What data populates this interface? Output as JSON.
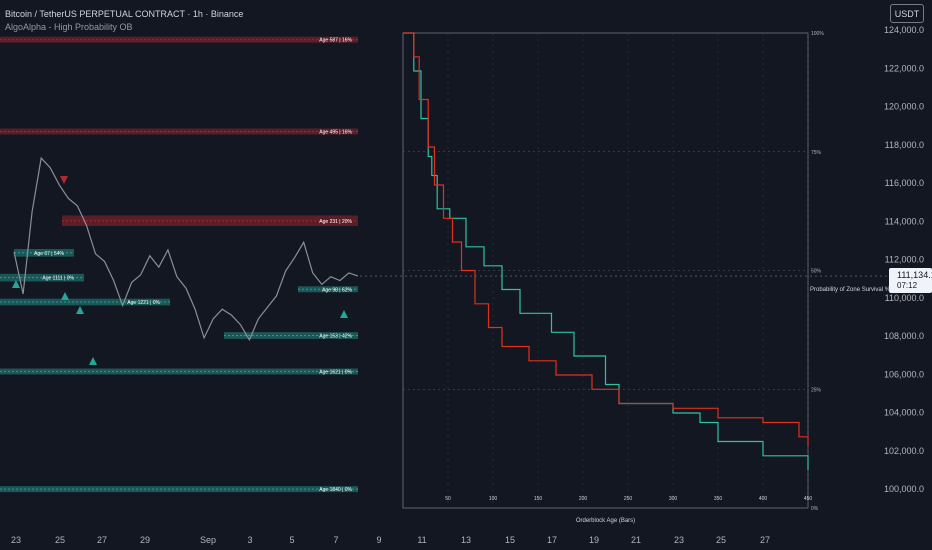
{
  "header": {
    "symbol_title": "Bitcoin / TetherUS PERPETUAL CONTRACT · 1h · Binance",
    "indicator_name": "AlgoAlpha - High Probability OB"
  },
  "currency_button": "USDT",
  "last_price": {
    "price": "111,134.1",
    "countdown": "07:12"
  },
  "price_axis": {
    "ticks": [
      "124,000.0",
      "122,000.0",
      "120,000.0",
      "118,000.0",
      "116,000.0",
      "114,000.0",
      "112,000.0",
      "110,000.0",
      "108,000.0",
      "106,000.0",
      "104,000.0",
      "102,000.0",
      "100,000.0"
    ],
    "ticks_values": [
      124000,
      122000,
      120000,
      118000,
      116000,
      114000,
      112000,
      110000,
      108000,
      106000,
      104000,
      102000,
      100000
    ]
  },
  "time_axis": {
    "labels": [
      "23",
      "25",
      "27",
      "29",
      "Sep",
      "3",
      "5",
      "7",
      "9",
      "11",
      "13",
      "15",
      "17",
      "19",
      "21",
      "23",
      "25",
      "27"
    ]
  },
  "order_blocks": [
    {
      "label": "Age 587 | 16%",
      "color": "bear"
    },
    {
      "label": "Age 495 | 16%",
      "color": "bear"
    },
    {
      "label": "Age 231 | 20%",
      "color": "bear"
    },
    {
      "label": "Age 67 | 54%",
      "color": "bull"
    },
    {
      "label": "Age 1111 | 0%",
      "color": "bull"
    },
    {
      "label": "Age 1221 | 0%",
      "color": "bull"
    },
    {
      "label": "Age 98 | 62%",
      "color": "bull"
    },
    {
      "label": "Age 153 | 42%",
      "color": "bull"
    },
    {
      "label": "Age 1621 | 0%",
      "color": "bull"
    },
    {
      "label": "Age 1840 | 0%",
      "color": "bull"
    }
  ],
  "survival_panel": {
    "xlabel": "Orderblock Age (Bars)",
    "ylabel": "Probability of Zone Survival %",
    "y_ticks": [
      "100%",
      "75%",
      "50%",
      "25%",
      "0%"
    ],
    "x_ticks": [
      "50",
      "100",
      "150",
      "200",
      "250",
      "300",
      "350",
      "400",
      "450"
    ]
  },
  "colors": {
    "background": "#131722",
    "bull": "#26a69a",
    "bear": "#b22833",
    "teal_curve": "#2fc1a4",
    "red_curve": "#e0301e",
    "candle": "#8a8e99"
  },
  "chart_data": [
    {
      "type": "line",
      "title": "Bitcoin / TetherUS PERPETUAL CONTRACT · 1h · Binance",
      "ylim": [
        99500,
        124500
      ],
      "y_ticks": [
        124000,
        122000,
        120000,
        118000,
        116000,
        114000,
        112000,
        110000,
        108000,
        106000,
        104000,
        102000,
        100000
      ],
      "x_tick_labels": [
        "23",
        "25",
        "27",
        "29",
        "Sep",
        "3",
        "5",
        "7",
        "9",
        "11",
        "13",
        "15",
        "17",
        "19",
        "21",
        "23",
        "25",
        "27"
      ],
      "series": [
        {
          "values": [
            112400,
            110200,
            114500,
            117300,
            116800,
            115900,
            115200,
            114800,
            113800,
            112300,
            111900,
            110900,
            109600,
            110800,
            111200,
            112200,
            111600,
            112500,
            111100,
            110500,
            109400,
            107900,
            108900,
            109400,
            109100,
            108600,
            107800,
            108900,
            109500,
            110100,
            111400,
            112100,
            112900,
            111300,
            110700,
            111100,
            110900,
            111300,
            111134
          ]
        }
      ],
      "zones": [
        {
          "label": "Age 587 | 16%",
          "top": 123650,
          "bottom": 123400,
          "type": "bearish"
        },
        {
          "label": "Age 495 | 16%",
          "top": 118850,
          "bottom": 118600,
          "type": "bearish"
        },
        {
          "label": "Age 231 | 20%",
          "top": 114300,
          "bottom": 113750,
          "type": "bearish"
        },
        {
          "label": "Age 67 | 54%",
          "top": 112550,
          "bottom": 112150,
          "type": "bullish"
        },
        {
          "label": "Age 1111 | 0%",
          "top": 111250,
          "bottom": 110850,
          "type": "bullish"
        },
        {
          "label": "Age 1221 | 0%",
          "top": 109950,
          "bottom": 109600,
          "type": "bullish"
        },
        {
          "label": "Age 98 | 62%",
          "top": 110600,
          "bottom": 110300,
          "type": "bullish"
        },
        {
          "label": "Age 153 | 42%",
          "top": 108200,
          "bottom": 107850,
          "type": "bullish"
        },
        {
          "label": "Age 1621 | 0%",
          "top": 106300,
          "bottom": 106050,
          "type": "bullish"
        },
        {
          "label": "Age 1840 | 0%",
          "top": 100150,
          "bottom": 99900,
          "type": "bullish"
        }
      ]
    },
    {
      "type": "line",
      "xlabel": "Orderblock Age (Bars)",
      "ylabel": "Probability of Zone Survival %",
      "xlim": [
        0,
        450
      ],
      "ylim": [
        0,
        100
      ],
      "x_ticks": [
        50,
        100,
        150,
        200,
        250,
        300,
        350,
        400,
        450
      ],
      "y_ticks": [
        0,
        25,
        50,
        75,
        100
      ],
      "series": [
        {
          "color": "#2fc1a4",
          "x": [
            0,
            12,
            20,
            28,
            32,
            38,
            52,
            70,
            90,
            110,
            130,
            165,
            190,
            225,
            240,
            300,
            330,
            350,
            400,
            450
          ],
          "y": [
            100,
            92,
            82,
            74,
            70,
            63,
            61,
            55,
            51,
            46,
            41,
            37,
            32,
            26,
            22,
            20,
            18,
            14,
            11,
            8
          ]
        },
        {
          "color": "#e0301e",
          "x": [
            0,
            12,
            18,
            28,
            35,
            45,
            55,
            65,
            80,
            95,
            110,
            140,
            170,
            210,
            240,
            300,
            350,
            400,
            440,
            450
          ],
          "y": [
            100,
            95,
            86,
            76,
            68,
            61,
            56,
            50,
            43,
            38,
            34,
            31,
            28,
            25,
            22,
            21,
            19,
            18,
            15,
            13
          ]
        }
      ]
    }
  ]
}
